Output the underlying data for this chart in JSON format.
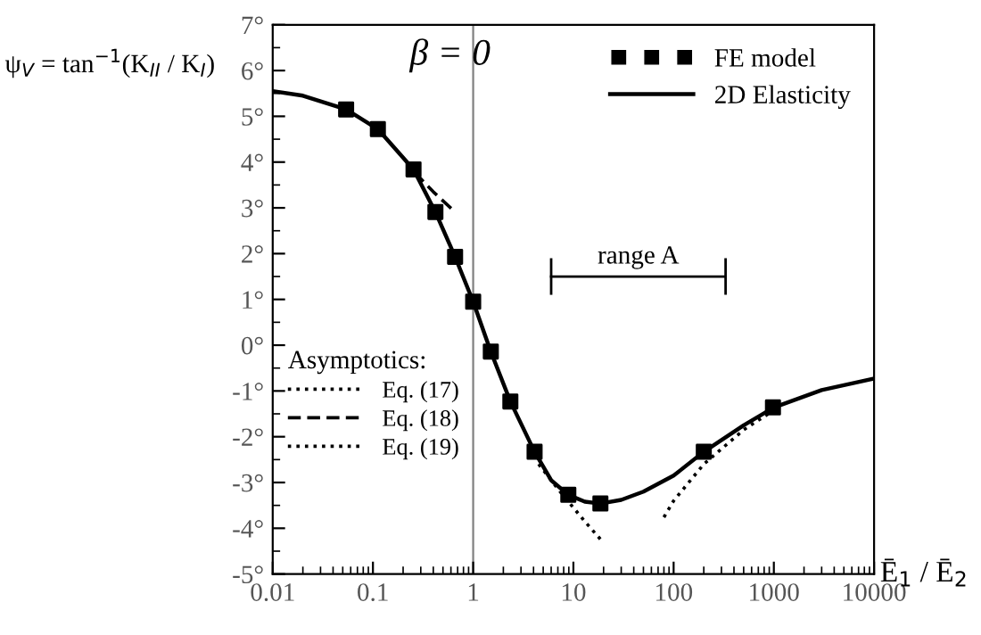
{
  "chart_data": {
    "type": "line",
    "ylabel": "ψ$_{V}$ = tan$^{−1}$(K$_{II}$ / K$_{I}$)",
    "xlabel": "Ē$_{1}$ / Ē$_{2}$",
    "legend_title": "Asymptotics:",
    "log": "x",
    "grid": false,
    "legend": "top right",
    "xlim": [
      0.01,
      10000
    ],
    "xticks": [
      0.01,
      0.1,
      1,
      10,
      100,
      1000,
      10000
    ],
    "ylim": [
      -5,
      7
    ],
    "yticks": [
      {
        "value": -5,
        "label": "-5°"
      },
      {
        "value": -4,
        "label": "-4°"
      },
      {
        "value": -3,
        "label": "-3°"
      },
      {
        "value": -2,
        "label": "-2°"
      },
      {
        "value": -1,
        "label": "-1°"
      },
      {
        "value": 0,
        "label": "0°"
      },
      {
        "value": 1,
        "label": "1°"
      },
      {
        "value": 2,
        "label": "2°"
      },
      {
        "value": 3,
        "label": "3°"
      },
      {
        "value": 4,
        "label": "4°"
      },
      {
        "value": 5,
        "label": "5°"
      },
      {
        "value": 6,
        "label": "6°"
      },
      {
        "value": 7,
        "label": "7°"
      }
    ],
    "annotations": [
      "β = 0",
      {
        "text": "range A",
        "x": 44.5,
        "y": 1.5
      }
    ],
    "ref_lines": [
      {
        "axis": "x",
        "value": 1,
        "label": null,
        "color": "#808080"
      }
    ],
    "series": [
      {
        "name": "FE model",
        "type": "scatter",
        "marker": "square",
        "color": "#000000",
        "x": [
          0.054,
          0.112,
          0.254,
          0.42,
          0.66,
          1.0,
          1.5,
          2.35,
          4.1,
          8.9,
          18.6,
          200,
          980
        ],
        "values": [
          5.15,
          4.72,
          3.84,
          2.91,
          1.93,
          0.95,
          -0.14,
          -1.23,
          -2.33,
          -3.27,
          -3.46,
          -2.33,
          -1.36
        ]
      },
      {
        "line_style": "solid",
        "color": "#000000",
        "x": [
          6,
          330
        ],
        "values": [
          1.5,
          1.5
        ],
        "errors": [
          0.4,
          0.4
        ]
      },
      {
        "name": "2D Elasticity",
        "type": "line",
        "line_style": "solid",
        "color": "#000000",
        "x": [
          0.01,
          0.02,
          0.054,
          0.112,
          0.254,
          0.42,
          0.66,
          1.0,
          1.5,
          2.35,
          4.1,
          6,
          8.9,
          13,
          18.6,
          30,
          50,
          100,
          200,
          500,
          1000,
          3000,
          10000
        ],
        "values": [
          5.55,
          5.45,
          5.15,
          4.72,
          3.84,
          2.91,
          1.93,
          0.95,
          -0.14,
          -1.23,
          -2.33,
          -2.95,
          -3.27,
          -3.42,
          -3.46,
          -3.38,
          -3.2,
          -2.85,
          -2.33,
          -1.75,
          -1.36,
          -0.98,
          -0.73
        ]
      },
      {
        "name": "Eq. (17)",
        "type": "line",
        "line_style": "dotted",
        "color": "#000000",
        "x": [
          4.5,
          6,
          8,
          10,
          13,
          18.6
        ],
        "values": [
          -2.6,
          -2.95,
          -3.3,
          -3.55,
          -3.85,
          -4.24
        ]
      },
      {
        "name": "Eq. (18)",
        "type": "line",
        "line_style": "dashed",
        "color": "#000000",
        "x": [
          0.26,
          0.4,
          0.63
        ],
        "values": [
          3.78,
          3.35,
          2.95
        ]
      },
      {
        "name": "Eq. (19)",
        "type": "line",
        "line_style": "dotted",
        "color": "#000000",
        "x": [
          80,
          100,
          200,
          500,
          1000
        ],
        "values": [
          -3.76,
          -3.4,
          -2.6,
          -1.85,
          -1.42
        ]
      }
    ]
  }
}
